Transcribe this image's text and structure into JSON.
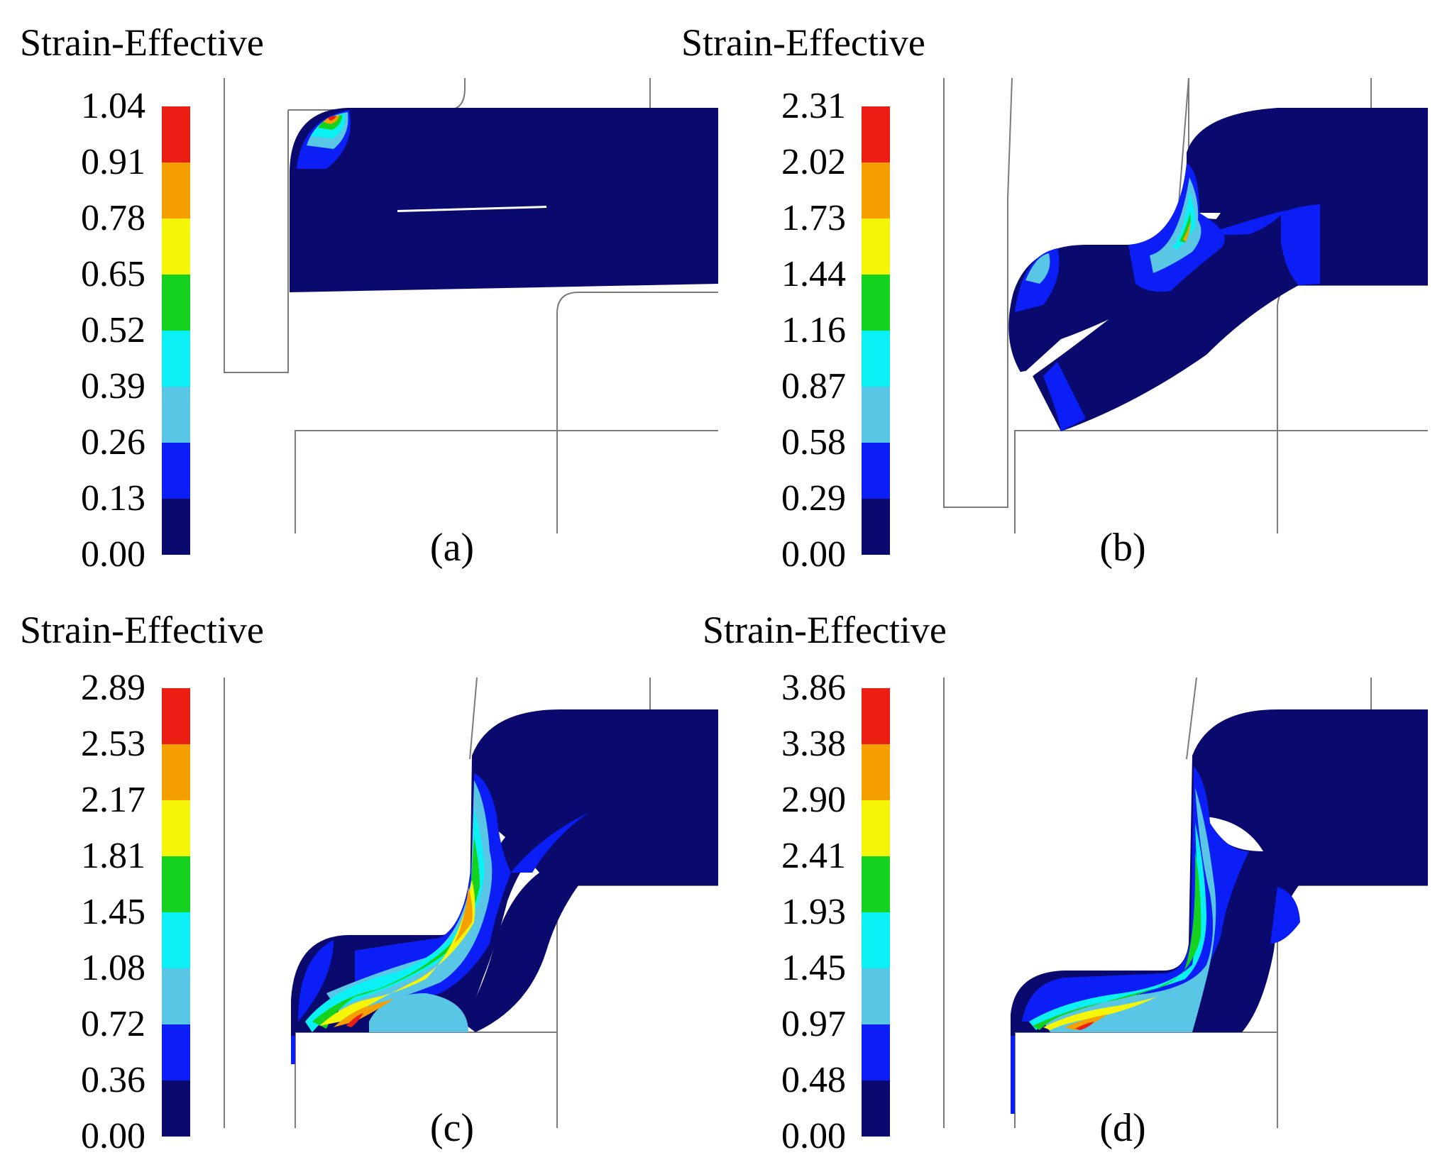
{
  "colormap": [
    "#0a0a6e",
    "#0b1ef5",
    "#5ac6e6",
    "#0af0f5",
    "#14d21e",
    "#f5f50a",
    "#f5a000",
    "#eb1e14"
  ],
  "panels": [
    {
      "id": "a",
      "title": "Strain-Effective",
      "caption": "(a)",
      "ticks": [
        "1.04",
        "0.91",
        "0.78",
        "0.65",
        "0.52",
        "0.39",
        "0.26",
        "0.13",
        "0.00"
      ]
    },
    {
      "id": "b",
      "title": "Strain-Effective",
      "caption": "(b)",
      "ticks": [
        "2.31",
        "2.02",
        "1.73",
        "1.44",
        "1.16",
        "0.87",
        "0.58",
        "0.29",
        "0.00"
      ]
    },
    {
      "id": "c",
      "title": "Strain-Effective",
      "caption": "(c)",
      "ticks": [
        "2.89",
        "2.53",
        "2.17",
        "1.81",
        "1.45",
        "1.08",
        "0.72",
        "0.36",
        "0.00"
      ]
    },
    {
      "id": "d",
      "title": "Strain-Effective",
      "caption": "(d)",
      "ticks": [
        "3.86",
        "3.38",
        "2.90",
        "2.41",
        "1.93",
        "1.45",
        "0.97",
        "0.48",
        "0.00"
      ]
    }
  ]
}
